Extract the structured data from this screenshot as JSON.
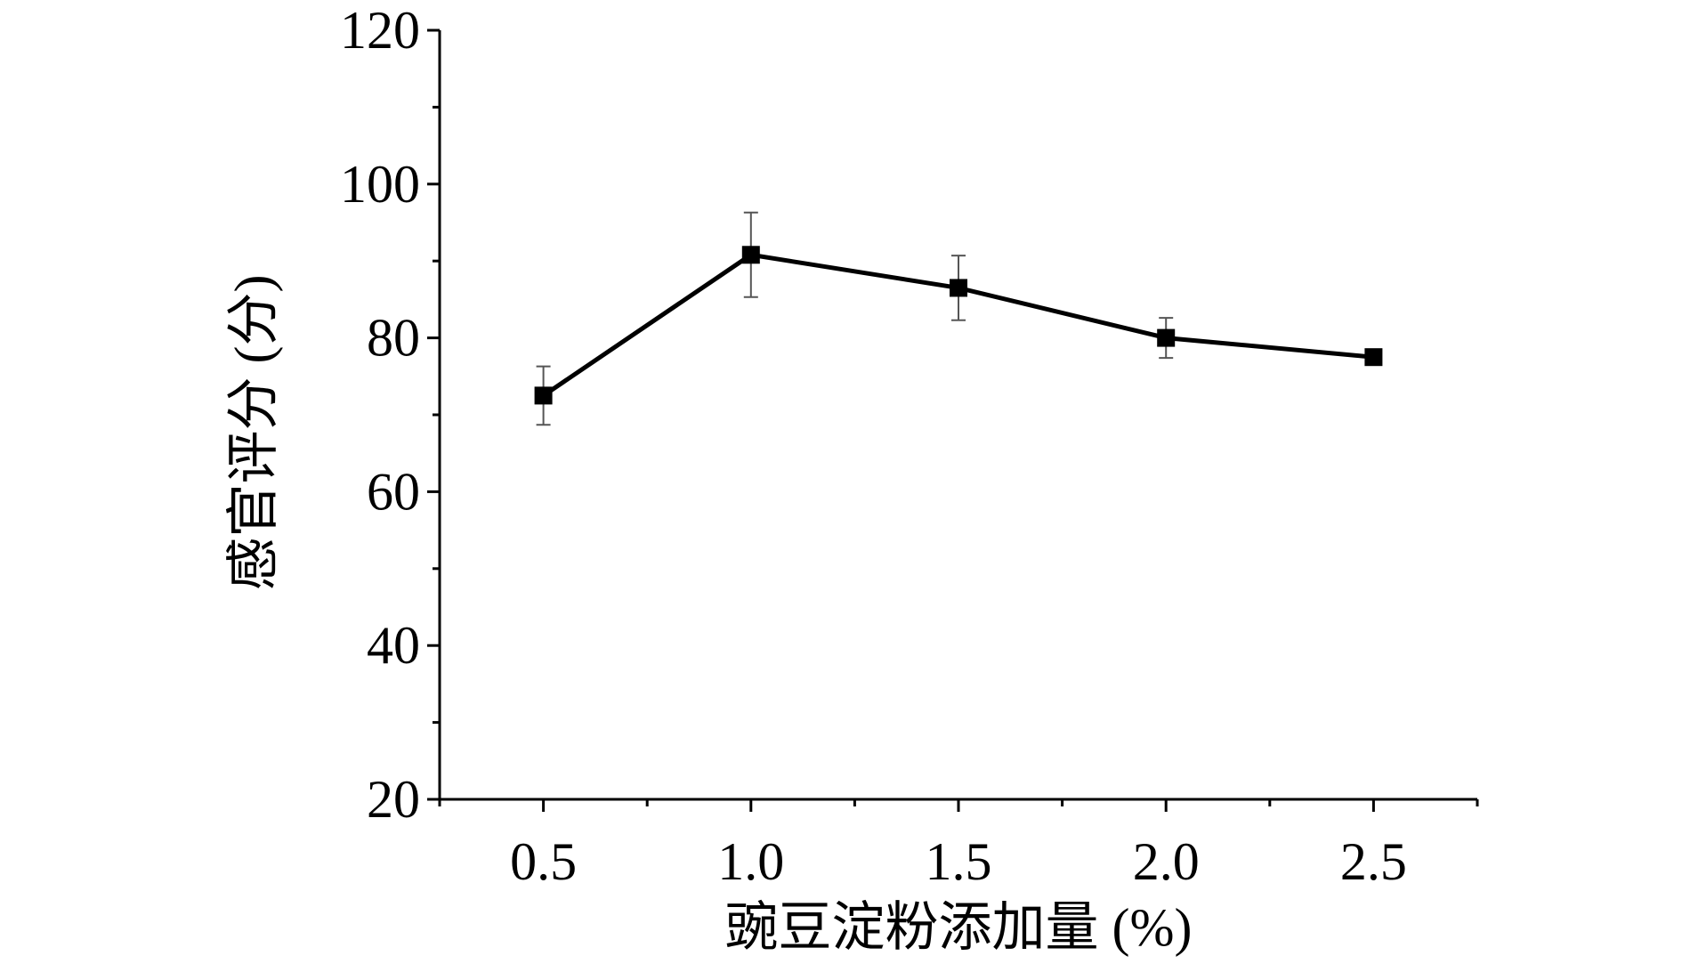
{
  "chart_data": {
    "type": "line",
    "title": "",
    "xlabel": "豌豆淀粉添加量 (%)",
    "ylabel": "感官评分 (分)",
    "x": [
      0.5,
      1.0,
      1.5,
      2.0,
      2.5
    ],
    "x_tick_labels": [
      "0.5",
      "1.0",
      "1.5",
      "2.0",
      "2.5"
    ],
    "y_ticks": [
      20,
      40,
      60,
      80,
      100,
      120
    ],
    "y_tick_labels": [
      "20",
      "40",
      "60",
      "80",
      "100",
      "120"
    ],
    "xlim": [
      0.25,
      2.75
    ],
    "ylim": [
      20,
      120
    ],
    "grid": false,
    "legend": "none",
    "series": [
      {
        "values": [
          72.5,
          90.8,
          86.5,
          80.0,
          77.5
        ],
        "errors": [
          3.8,
          5.5,
          4.2,
          2.6,
          0.5
        ],
        "marker": "square",
        "color": "#000000"
      }
    ]
  }
}
